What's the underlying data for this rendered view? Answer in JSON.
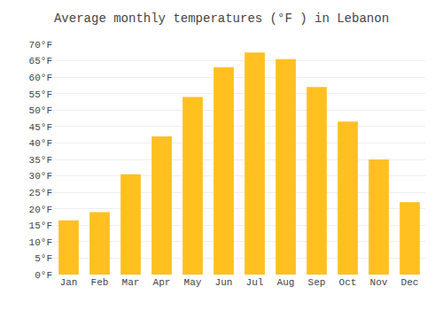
{
  "chart_data": {
    "type": "bar",
    "title": "Average monthly temperatures (°F ) in Lebanon",
    "categories": [
      "Jan",
      "Feb",
      "Mar",
      "Apr",
      "May",
      "Jun",
      "Jul",
      "Aug",
      "Sep",
      "Oct",
      "Nov",
      "Dec"
    ],
    "values": [
      16.5,
      19.0,
      30.5,
      42.0,
      54.0,
      63.0,
      67.5,
      65.5,
      57.0,
      46.5,
      35.0,
      22.0
    ],
    "color": "#FFC020",
    "ylim": [
      0,
      70
    ],
    "yticks": [
      {
        "value": 0,
        "label": "0°F"
      },
      {
        "value": 5,
        "label": "5°F"
      },
      {
        "value": 10,
        "label": "10°F"
      },
      {
        "value": 15,
        "label": "15°F"
      },
      {
        "value": 20,
        "label": "20°F"
      },
      {
        "value": 25,
        "label": "25°F"
      },
      {
        "value": 30,
        "label": "30°F"
      },
      {
        "value": 35,
        "label": "35°F"
      },
      {
        "value": 40,
        "label": "40°F"
      },
      {
        "value": 45,
        "label": "45°F"
      },
      {
        "value": 50,
        "label": "50°F"
      },
      {
        "value": 55,
        "label": "55°F"
      },
      {
        "value": 60,
        "label": "60°F"
      },
      {
        "value": 65,
        "label": "65°F"
      },
      {
        "value": 70,
        "label": "70°F"
      }
    ],
    "grid": true
  }
}
